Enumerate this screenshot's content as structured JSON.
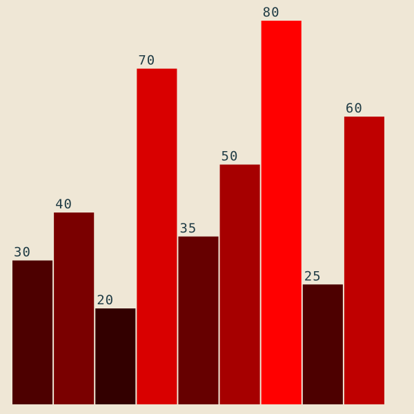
{
  "chart_data": {
    "type": "bar",
    "title": "",
    "xlabel": "",
    "ylabel": "",
    "ylim": [
      0,
      80
    ],
    "grid": false,
    "values": [
      30,
      40,
      20,
      70,
      35,
      50,
      80,
      25,
      60
    ],
    "labels": [
      "30",
      "40",
      "20",
      "70",
      "35",
      "50",
      "80",
      "25",
      "60"
    ],
    "colors": [
      "#4d0000",
      "#7a0000",
      "#330000",
      "#d90000",
      "#660000",
      "#a60000",
      "#ff0000",
      "#4d0000",
      "#bf0000"
    ]
  }
}
